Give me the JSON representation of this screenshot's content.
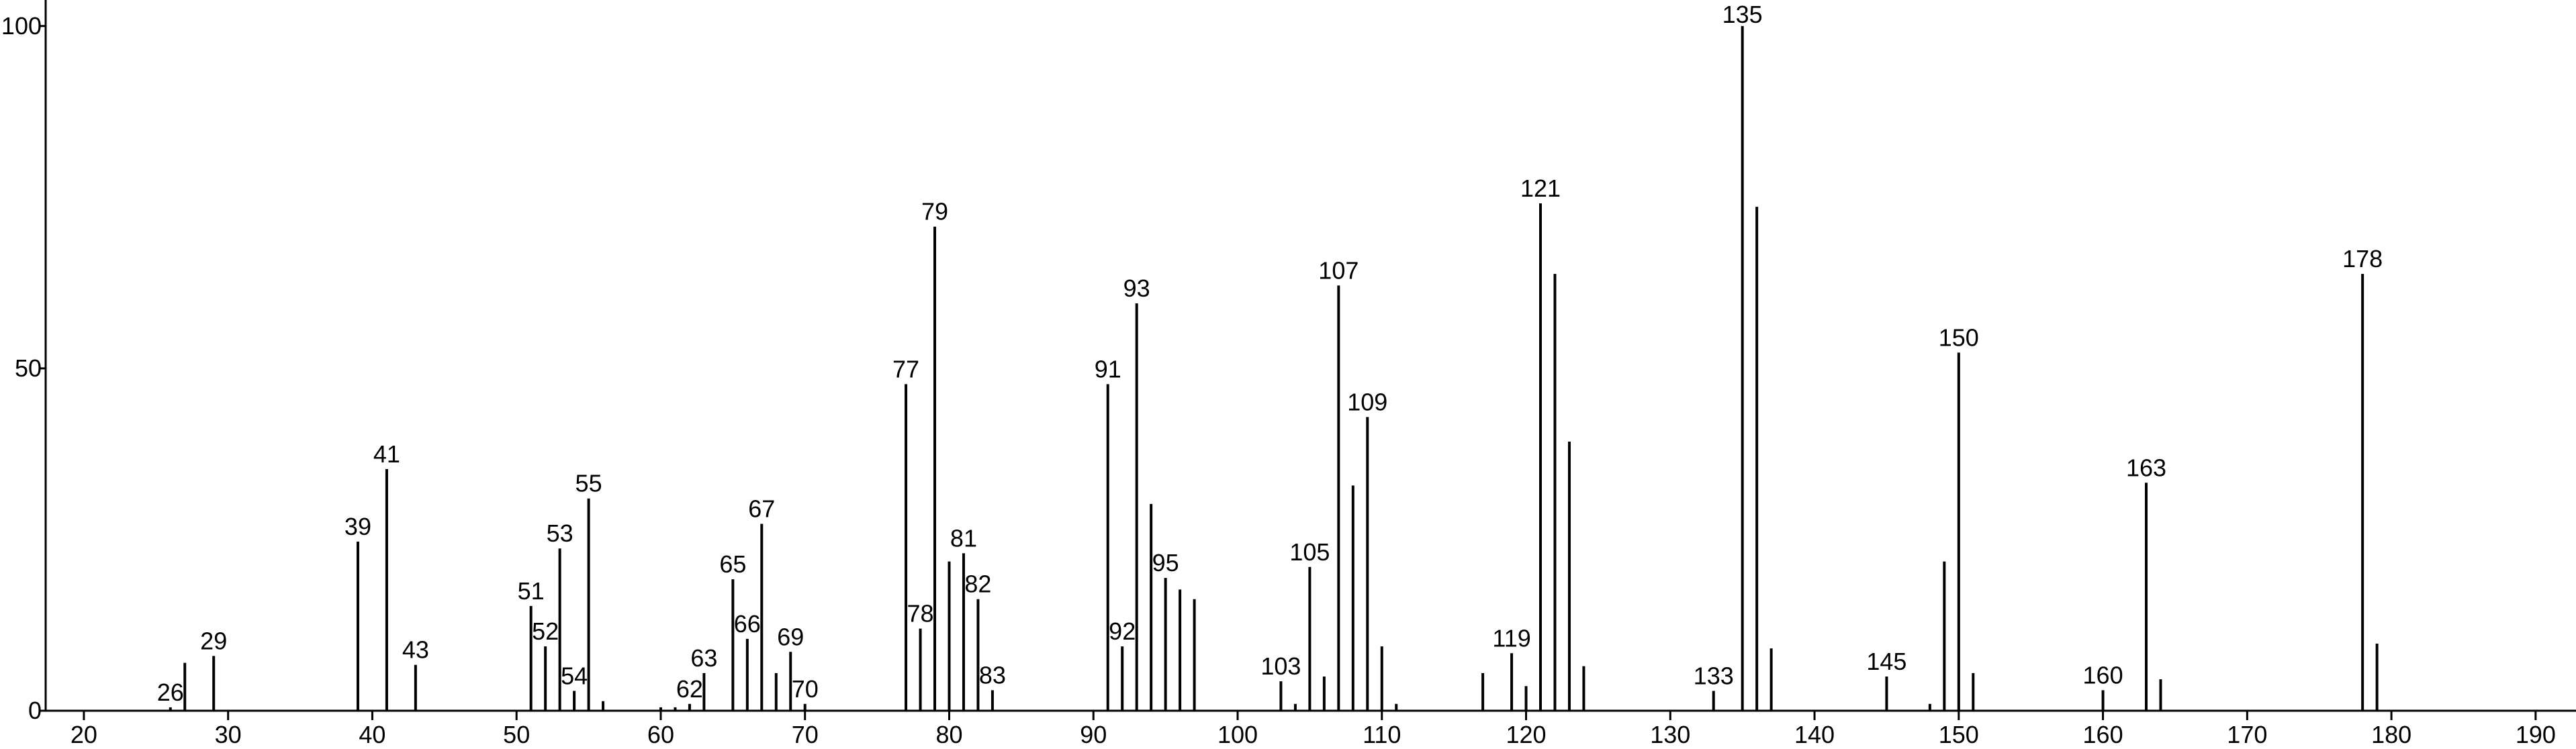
{
  "chart_data": {
    "type": "stem",
    "color": "#000000",
    "xlim": [
      17.35,
      192.8
    ],
    "ylim": [
      0,
      103.8
    ],
    "xticks": [
      20,
      30,
      40,
      50,
      60,
      70,
      80,
      90,
      100,
      110,
      120,
      130,
      140,
      150,
      160,
      170,
      180,
      190
    ],
    "yticks": [
      0,
      50,
      100
    ],
    "x": [
      26,
      27,
      29,
      39,
      41,
      43,
      51,
      52,
      53,
      54,
      55,
      56,
      60,
      61,
      62,
      63,
      65,
      66,
      67,
      68,
      69,
      70,
      77,
      78,
      79,
      80,
      81,
      82,
      83,
      91,
      92,
      93,
      94,
      95,
      96,
      97,
      103,
      104,
      105,
      106,
      107,
      108,
      109,
      110,
      111,
      117,
      119,
      120,
      121,
      122,
      123,
      124,
      133,
      135,
      136,
      137,
      145,
      148,
      149,
      150,
      151,
      160,
      163,
      164,
      178,
      179
    ],
    "values": [
      0.5,
      7,
      8,
      24.7,
      35.3,
      6.7,
      15.3,
      9.4,
      23.7,
      2.9,
      31,
      1.4,
      0.5,
      0.5,
      1,
      5.5,
      19.2,
      10.5,
      27.3,
      5.5,
      8.6,
      1,
      47.7,
      12,
      70.7,
      21.8,
      23,
      16.3,
      3,
      47.7,
      9.4,
      59.5,
      30.2,
      19.4,
      17.7,
      16.3,
      4.3,
      1,
      21,
      5,
      62.1,
      32.9,
      42.9,
      9.4,
      1,
      5.5,
      8.4,
      3.6,
      74.1,
      63.8,
      39.3,
      6.5,
      2.9,
      100,
      73.6,
      9.1,
      5,
      1,
      21.8,
      52.3,
      5.5,
      3,
      33.3,
      4.6,
      63.8,
      9.8
    ],
    "label_shown": [
      true,
      false,
      true,
      true,
      true,
      true,
      true,
      true,
      true,
      true,
      true,
      false,
      false,
      false,
      true,
      true,
      true,
      true,
      true,
      false,
      true,
      true,
      true,
      true,
      true,
      false,
      true,
      true,
      true,
      true,
      true,
      true,
      false,
      true,
      false,
      false,
      true,
      false,
      true,
      false,
      true,
      false,
      true,
      false,
      false,
      false,
      true,
      false,
      true,
      false,
      false,
      false,
      true,
      true,
      false,
      false,
      true,
      false,
      false,
      true,
      false,
      true,
      true,
      false,
      true,
      false
    ]
  }
}
